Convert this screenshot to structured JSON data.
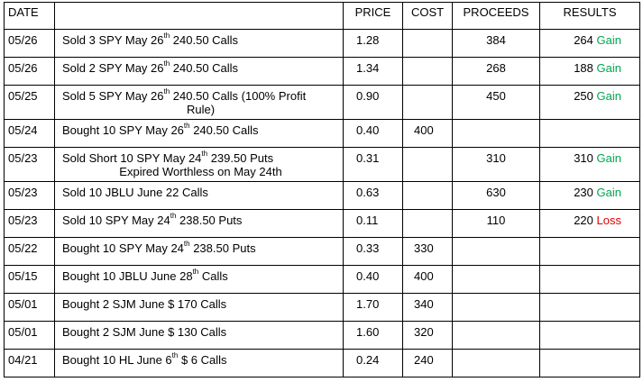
{
  "headers": {
    "date": "DATE",
    "description": "",
    "price": "PRICE",
    "cost": "COST",
    "proceeds": "PROCEEDS",
    "results": "RESULTS"
  },
  "rows": [
    {
      "date": "05/26",
      "desc_pre": "Sold 3 SPY May 26",
      "desc_sup": "th",
      "desc_post": " 240.50 Calls",
      "desc_second": "",
      "price": "1.28",
      "cost": "",
      "proceeds": "384",
      "result_value": "264",
      "result_label": "Gain",
      "result_kind": "gain",
      "height": 31
    },
    {
      "date": "05/26",
      "desc_pre": "Sold 2 SPY May 26",
      "desc_sup": "th",
      "desc_post": " 240.50 Calls",
      "desc_second": "",
      "price": "1.34",
      "cost": "",
      "proceeds": "268",
      "result_value": "188",
      "result_label": "Gain",
      "result_kind": "gain",
      "height": 31
    },
    {
      "date": "05/25",
      "desc_pre": "Sold 5 SPY May 26",
      "desc_sup": "th",
      "desc_post": " 240.50 Calls (100% Profit",
      "desc_second": "Rule)",
      "price": "0.90",
      "cost": "",
      "proceeds": "450",
      "result_value": "250",
      "result_label": "Gain",
      "result_kind": "gain",
      "height": 38
    },
    {
      "date": "05/24",
      "desc_pre": "Bought 10 SPY May 26",
      "desc_sup": "th",
      "desc_post": " 240.50 Calls",
      "desc_second": "",
      "price": "0.40",
      "cost": "400",
      "proceeds": "",
      "result_value": "",
      "result_label": "",
      "result_kind": "",
      "height": 31
    },
    {
      "date": "05/23",
      "desc_pre": "Sold Short 10 SPY May 24",
      "desc_sup": "th",
      "desc_post": "  239.50 Puts",
      "desc_second": "Expired Worthless on May  24th",
      "price": "0.31",
      "cost": "",
      "proceeds": "310",
      "result_value": "310",
      "result_label": "Gain",
      "result_kind": "gain",
      "height": 38
    },
    {
      "date": "05/23",
      "desc_pre": "Sold 10 JBLU June 22 Calls",
      "desc_sup": "",
      "desc_post": "",
      "desc_second": "",
      "price": "0.63",
      "cost": "",
      "proceeds": "630",
      "result_value": "230",
      "result_label": "Gain",
      "result_kind": "gain",
      "height": 31
    },
    {
      "date": "05/23",
      "desc_pre": "Sold 10 SPY May 24",
      "desc_sup": "th",
      "desc_post": " 238.50 Puts",
      "desc_second": "",
      "price": "0.11",
      "cost": "",
      "proceeds": "110",
      "result_value": "220",
      "result_label": "Loss",
      "result_kind": "loss",
      "height": 31
    },
    {
      "date": "05/22",
      "desc_pre": "Bought 10 SPY May 24",
      "desc_sup": "th",
      "desc_post": " 238.50 Puts",
      "desc_second": "",
      "price": "0.33",
      "cost": "330",
      "proceeds": "",
      "result_value": "",
      "result_label": "",
      "result_kind": "",
      "height": 31
    },
    {
      "date": "05/15",
      "desc_pre": "Bought 10 JBLU June 28",
      "desc_sup": "th",
      "desc_post": " Calls",
      "desc_second": "",
      "price": "0.40",
      "cost": "400",
      "proceeds": "",
      "result_value": "",
      "result_label": "",
      "result_kind": "",
      "height": 31
    },
    {
      "date": "05/01",
      "desc_pre": "Bought 2 SJM June $ 170 Calls",
      "desc_sup": "",
      "desc_post": "",
      "desc_second": "",
      "price": "1.70",
      "cost": "340",
      "proceeds": "",
      "result_value": "",
      "result_label": "",
      "result_kind": "",
      "height": 31
    },
    {
      "date": "05/01",
      "desc_pre": "Bought 2 SJM June $ 130 Calls",
      "desc_sup": "",
      "desc_post": "",
      "desc_second": "",
      "price": "1.60",
      "cost": "320",
      "proceeds": "",
      "result_value": "",
      "result_label": "",
      "result_kind": "",
      "height": 31
    },
    {
      "date": "04/21",
      "desc_pre": "Bought 10 HL June 6",
      "desc_sup": "th",
      "desc_post": " $ 6 Calls",
      "desc_second": "",
      "price": "0.24",
      "cost": "240",
      "proceeds": "",
      "result_value": "",
      "result_label": "",
      "result_kind": "",
      "height": 31
    }
  ]
}
